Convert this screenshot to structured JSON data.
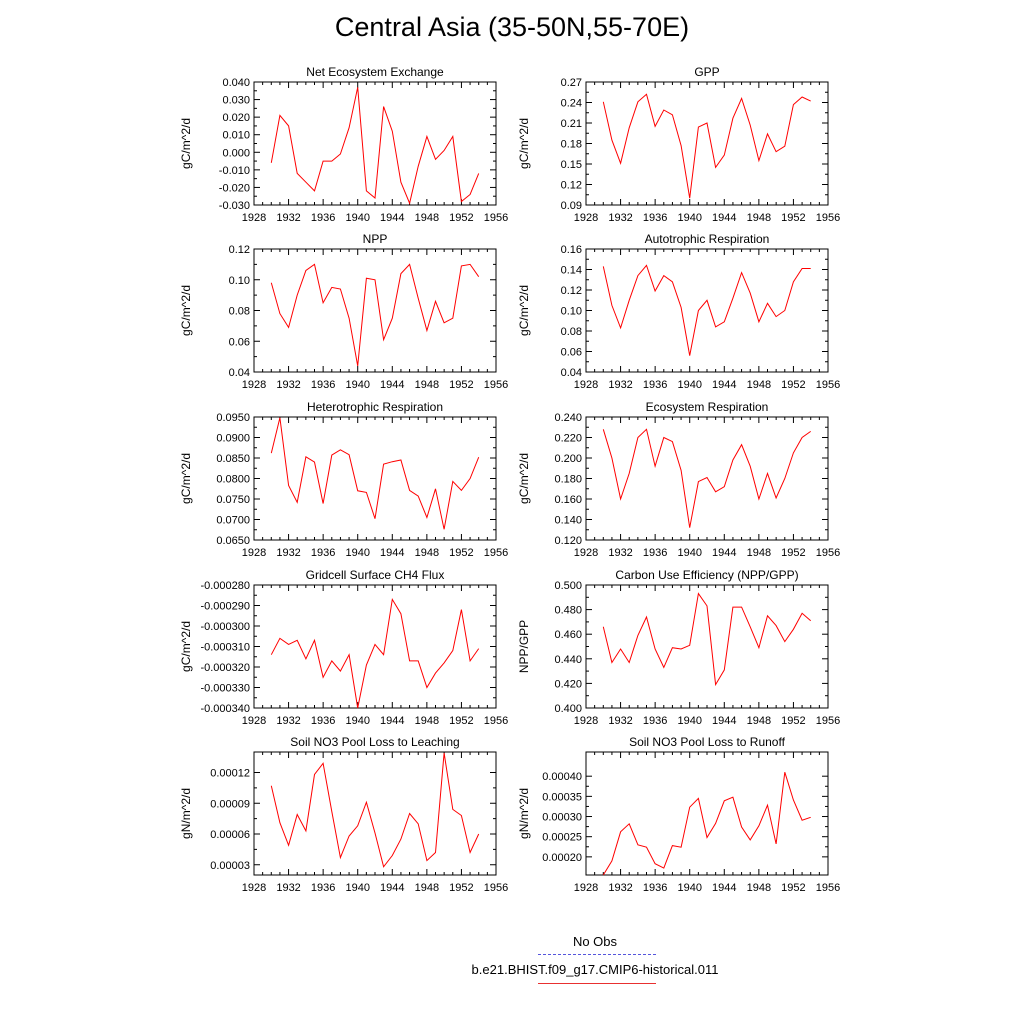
{
  "title": "Central Asia (35-50N,55-70E)",
  "legend": [
    {
      "label": "No Obs",
      "color": "#5555dd",
      "style": "dashed"
    },
    {
      "label": "b.e21.BHIST.f09_g17.CMIP6-historical.011",
      "color": "#e83030",
      "style": "solid"
    }
  ],
  "line_color": "#ff0000",
  "chart_data": [
    {
      "type": "line",
      "title": "Net Ecosystem Exchange",
      "ylabel": "gC/m^2/d",
      "xlabel": "",
      "xlim": [
        1928,
        1956
      ],
      "ylim": [
        -0.03,
        0.04
      ],
      "xticks": [
        "1928",
        "1932",
        "1936",
        "1940",
        "1944",
        "1948",
        "1952",
        "1956"
      ],
      "yticks": [
        "-0.030",
        "-0.020",
        "-0.010",
        "0.000",
        "0.010",
        "0.020",
        "0.030",
        "0.040"
      ],
      "x": [
        1930,
        1931,
        1932,
        1933,
        1934,
        1935,
        1936,
        1937,
        1938,
        1939,
        1940,
        1941,
        1942,
        1943,
        1944,
        1945,
        1946,
        1947,
        1948,
        1949,
        1950,
        1951,
        1952,
        1953,
        1954
      ],
      "y": [
        -0.006,
        0.021,
        0.015,
        -0.012,
        -0.017,
        -0.022,
        -0.005,
        -0.005,
        -0.001,
        0.014,
        0.037,
        -0.022,
        -0.026,
        0.026,
        0.012,
        -0.017,
        -0.029,
        -0.008,
        0.009,
        -0.004,
        0.001,
        0.009,
        -0.028,
        -0.024,
        -0.012
      ]
    },
    {
      "type": "line",
      "title": "GPP",
      "ylabel": "gC/m^2/d",
      "xlabel": "",
      "xlim": [
        1928,
        1956
      ],
      "ylim": [
        0.09,
        0.27
      ],
      "xticks": [
        "1928",
        "1932",
        "1936",
        "1940",
        "1944",
        "1948",
        "1952",
        "1956"
      ],
      "yticks": [
        "0.09",
        "0.12",
        "0.15",
        "0.18",
        "0.21",
        "0.24",
        "0.27"
      ],
      "x": [
        1930,
        1931,
        1932,
        1933,
        1934,
        1935,
        1936,
        1937,
        1938,
        1939,
        1940,
        1941,
        1942,
        1943,
        1944,
        1945,
        1946,
        1947,
        1948,
        1949,
        1950,
        1951,
        1952,
        1953,
        1954
      ],
      "y": [
        0.241,
        0.185,
        0.151,
        0.203,
        0.241,
        0.252,
        0.205,
        0.229,
        0.222,
        0.177,
        0.1,
        0.204,
        0.21,
        0.145,
        0.163,
        0.217,
        0.246,
        0.207,
        0.155,
        0.194,
        0.168,
        0.176,
        0.237,
        0.248,
        0.242
      ]
    },
    {
      "type": "line",
      "title": "NPP",
      "ylabel": "gC/m^2/d",
      "xlabel": "",
      "xlim": [
        1928,
        1956
      ],
      "ylim": [
        0.04,
        0.12
      ],
      "xticks": [
        "1928",
        "1932",
        "1936",
        "1940",
        "1944",
        "1948",
        "1952",
        "1956"
      ],
      "yticks": [
        "0.04",
        "0.06",
        "0.08",
        "0.10",
        "0.12"
      ],
      "x": [
        1930,
        1931,
        1932,
        1933,
        1934,
        1935,
        1936,
        1937,
        1938,
        1939,
        1940,
        1941,
        1942,
        1943,
        1944,
        1945,
        1946,
        1947,
        1948,
        1949,
        1950,
        1951,
        1952,
        1953,
        1954
      ],
      "y": [
        0.098,
        0.078,
        0.069,
        0.09,
        0.106,
        0.11,
        0.085,
        0.095,
        0.094,
        0.075,
        0.044,
        0.101,
        0.1,
        0.061,
        0.075,
        0.104,
        0.11,
        0.088,
        0.067,
        0.086,
        0.072,
        0.075,
        0.109,
        0.11,
        0.102
      ]
    },
    {
      "type": "line",
      "title": "Autotrophic Respiration",
      "ylabel": "gC/m^2/d",
      "xlabel": "",
      "xlim": [
        1928,
        1956
      ],
      "ylim": [
        0.04,
        0.16
      ],
      "xticks": [
        "1928",
        "1932",
        "1936",
        "1940",
        "1944",
        "1948",
        "1952",
        "1956"
      ],
      "yticks": [
        "0.04",
        "0.06",
        "0.08",
        "0.10",
        "0.12",
        "0.14",
        "0.16"
      ],
      "x": [
        1930,
        1931,
        1932,
        1933,
        1934,
        1935,
        1936,
        1937,
        1938,
        1939,
        1940,
        1941,
        1942,
        1943,
        1944,
        1945,
        1946,
        1947,
        1948,
        1949,
        1950,
        1951,
        1952,
        1953,
        1954
      ],
      "y": [
        0.143,
        0.105,
        0.083,
        0.11,
        0.134,
        0.144,
        0.119,
        0.134,
        0.128,
        0.103,
        0.056,
        0.1,
        0.11,
        0.084,
        0.089,
        0.112,
        0.137,
        0.117,
        0.089,
        0.107,
        0.094,
        0.1,
        0.128,
        0.141,
        0.141
      ]
    },
    {
      "type": "line",
      "title": "Heterotrophic Respiration",
      "ylabel": "gC/m^2/d",
      "xlabel": "",
      "xlim": [
        1928,
        1956
      ],
      "ylim": [
        0.065,
        0.095
      ],
      "xticks": [
        "1928",
        "1932",
        "1936",
        "1940",
        "1944",
        "1948",
        "1952",
        "1956"
      ],
      "yticks": [
        "0.0650",
        "0.0700",
        "0.0750",
        "0.0800",
        "0.0850",
        "0.0900",
        "0.0950"
      ],
      "x": [
        1930,
        1931,
        1932,
        1933,
        1934,
        1935,
        1936,
        1937,
        1938,
        1939,
        1940,
        1941,
        1942,
        1943,
        1944,
        1945,
        1946,
        1947,
        1948,
        1949,
        1950,
        1951,
        1952,
        1953,
        1954
      ],
      "y": [
        0.0862,
        0.0948,
        0.0783,
        0.0742,
        0.0853,
        0.084,
        0.0739,
        0.0857,
        0.087,
        0.0858,
        0.077,
        0.0766,
        0.0702,
        0.0835,
        0.0841,
        0.0845,
        0.0771,
        0.0757,
        0.0705,
        0.0775,
        0.0676,
        0.0793,
        0.0771,
        0.08,
        0.0852
      ]
    },
    {
      "type": "line",
      "title": "Ecosystem Respiration",
      "ylabel": "gC/m^2/d",
      "xlabel": "",
      "xlim": [
        1928,
        1956
      ],
      "ylim": [
        0.12,
        0.24
      ],
      "xticks": [
        "1928",
        "1932",
        "1936",
        "1940",
        "1944",
        "1948",
        "1952",
        "1956"
      ],
      "yticks": [
        "0.120",
        "0.140",
        "0.160",
        "0.180",
        "0.200",
        "0.220",
        "0.240"
      ],
      "x": [
        1930,
        1931,
        1932,
        1933,
        1934,
        1935,
        1936,
        1937,
        1938,
        1939,
        1940,
        1941,
        1942,
        1943,
        1944,
        1945,
        1946,
        1947,
        1948,
        1949,
        1950,
        1951,
        1952,
        1953,
        1954
      ],
      "y": [
        0.228,
        0.2,
        0.16,
        0.185,
        0.22,
        0.228,
        0.192,
        0.22,
        0.216,
        0.188,
        0.132,
        0.177,
        0.181,
        0.167,
        0.172,
        0.198,
        0.213,
        0.192,
        0.16,
        0.185,
        0.161,
        0.18,
        0.205,
        0.22,
        0.226
      ]
    },
    {
      "type": "line",
      "title": "Gridcell Surface CH4 Flux",
      "ylabel": "gC/m^2/d",
      "xlabel": "",
      "xlim": [
        1928,
        1956
      ],
      "ylim": [
        -0.00034,
        -0.00028
      ],
      "xticks": [
        "1928",
        "1932",
        "1936",
        "1940",
        "1944",
        "1948",
        "1952",
        "1956"
      ],
      "yticks": [
        "-0.000340",
        "-0.000330",
        "-0.000320",
        "-0.000310",
        "-0.000300",
        "-0.000290",
        "-0.000280"
      ],
      "x": [
        1930,
        1931,
        1932,
        1933,
        1934,
        1935,
        1936,
        1937,
        1938,
        1939,
        1940,
        1941,
        1942,
        1943,
        1944,
        1945,
        1946,
        1947,
        1948,
        1949,
        1950,
        1951,
        1952,
        1953,
        1954
      ],
      "y": [
        -0.000314,
        -0.000306,
        -0.000309,
        -0.000307,
        -0.000316,
        -0.000307,
        -0.000325,
        -0.000317,
        -0.000322,
        -0.000314,
        -0.00034,
        -0.000319,
        -0.000309,
        -0.000314,
        -0.000287,
        -0.000294,
        -0.000317,
        -0.000317,
        -0.00033,
        -0.000323,
        -0.000318,
        -0.000312,
        -0.000292,
        -0.000317,
        -0.000311
      ]
    },
    {
      "type": "line",
      "title": "Carbon Use Efficiency (NPP/GPP)",
      "ylabel": "NPP/GPP",
      "xlabel": "",
      "xlim": [
        1928,
        1956
      ],
      "ylim": [
        0.4,
        0.5
      ],
      "xticks": [
        "1928",
        "1932",
        "1936",
        "1940",
        "1944",
        "1948",
        "1952",
        "1956"
      ],
      "yticks": [
        "0.400",
        "0.420",
        "0.440",
        "0.460",
        "0.480",
        "0.500"
      ],
      "x": [
        1930,
        1931,
        1932,
        1933,
        1934,
        1935,
        1936,
        1937,
        1938,
        1939,
        1940,
        1941,
        1942,
        1943,
        1944,
        1945,
        1946,
        1947,
        1948,
        1949,
        1950,
        1951,
        1952,
        1953,
        1954
      ],
      "y": [
        0.466,
        0.437,
        0.448,
        0.437,
        0.459,
        0.474,
        0.448,
        0.433,
        0.449,
        0.448,
        0.451,
        0.493,
        0.483,
        0.419,
        0.431,
        0.482,
        0.482,
        0.466,
        0.449,
        0.475,
        0.467,
        0.454,
        0.464,
        0.477,
        0.471
      ]
    },
    {
      "type": "line",
      "title": "Soil NO3 Pool Loss to Leaching",
      "ylabel": "gN/m^2/d",
      "xlabel": "",
      "xlim": [
        1928,
        1956
      ],
      "ylim": [
        2e-05,
        0.00014
      ],
      "xticks": [
        "1928",
        "1932",
        "1936",
        "1940",
        "1944",
        "1948",
        "1952",
        "1956"
      ],
      "yticks": [
        "0.00003",
        "0.00006",
        "0.00009",
        "0.00012"
      ],
      "ytick_values": [
        3e-05,
        6e-05,
        9e-05,
        0.00012
      ],
      "x": [
        1930,
        1931,
        1932,
        1933,
        1934,
        1935,
        1936,
        1937,
        1938,
        1939,
        1940,
        1941,
        1942,
        1943,
        1944,
        1945,
        1946,
        1947,
        1948,
        1949,
        1950,
        1951,
        1952,
        1953,
        1954
      ],
      "y": [
        0.000107,
        7.1e-05,
        4.9e-05,
        7.9e-05,
        6.3e-05,
        0.000118,
        0.000129,
        8.2e-05,
        3.7e-05,
        5.8e-05,
        6.8e-05,
        9.1e-05,
        6.1e-05,
        2.8e-05,
        3.9e-05,
        5.5e-05,
        8e-05,
        7e-05,
        3.4e-05,
        4.2e-05,
        0.000139,
        8.4e-05,
        7.8e-05,
        4.2e-05,
        6e-05
      ]
    },
    {
      "type": "line",
      "title": "Soil NO3 Pool Loss to Runoff",
      "ylabel": "gN/m^2/d",
      "xlabel": "",
      "xlim": [
        1928,
        1956
      ],
      "ylim": [
        0.000155,
        0.00046
      ],
      "xticks": [
        "1928",
        "1932",
        "1936",
        "1940",
        "1944",
        "1948",
        "1952",
        "1956"
      ],
      "yticks": [
        "0.00020",
        "0.00025",
        "0.00030",
        "0.00035",
        "0.00040"
      ],
      "ytick_values": [
        0.0002,
        0.00025,
        0.0003,
        0.00035,
        0.0004
      ],
      "x": [
        1930,
        1931,
        1932,
        1933,
        1934,
        1935,
        1936,
        1937,
        1938,
        1939,
        1940,
        1941,
        1942,
        1943,
        1944,
        1945,
        1946,
        1947,
        1948,
        1949,
        1950,
        1951,
        1952,
        1953,
        1954
      ],
      "y": [
        0.000155,
        0.00019,
        0.000262,
        0.000282,
        0.00023,
        0.000224,
        0.000183,
        0.000172,
        0.000228,
        0.000224,
        0.000323,
        0.000345,
        0.000248,
        0.000283,
        0.000339,
        0.000348,
        0.000274,
        0.000242,
        0.000277,
        0.000328,
        0.000232,
        0.00041,
        0.000341,
        0.000291,
        0.000298
      ]
    }
  ]
}
